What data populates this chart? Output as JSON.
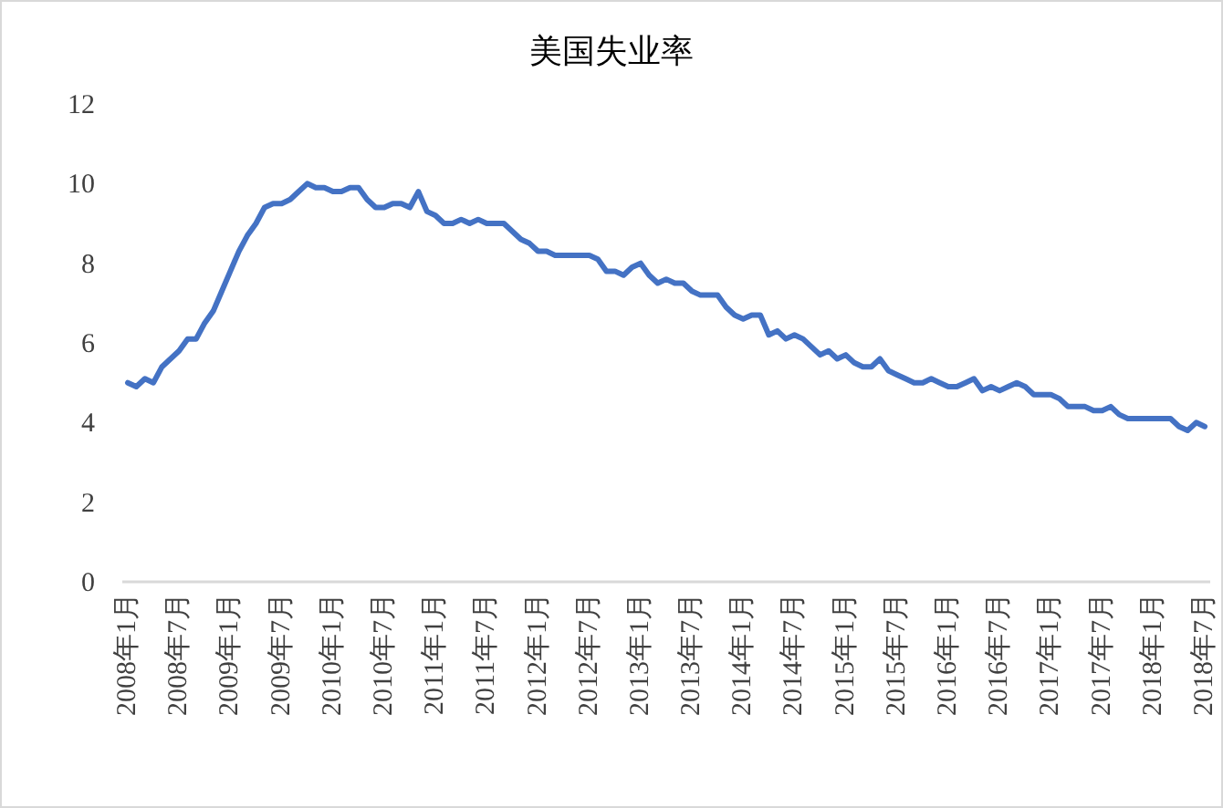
{
  "chart_data": {
    "type": "line",
    "title": "美国失业率",
    "categories": [
      "2008年1月",
      null,
      null,
      null,
      null,
      null,
      "2008年7月",
      null,
      null,
      null,
      null,
      null,
      "2009年1月",
      null,
      null,
      null,
      null,
      null,
      "2009年7月",
      null,
      null,
      null,
      null,
      null,
      "2010年1月",
      null,
      null,
      null,
      null,
      null,
      "2010年7月",
      null,
      null,
      null,
      null,
      null,
      "2011年1月",
      null,
      null,
      null,
      null,
      null,
      "2011年7月",
      null,
      null,
      null,
      null,
      null,
      "2012年1月",
      null,
      null,
      null,
      null,
      null,
      "2012年7月",
      null,
      null,
      null,
      null,
      null,
      "2013年1月",
      null,
      null,
      null,
      null,
      null,
      "2013年7月",
      null,
      null,
      null,
      null,
      null,
      "2014年1月",
      null,
      null,
      null,
      null,
      null,
      "2014年7月",
      null,
      null,
      null,
      null,
      null,
      "2015年1月",
      null,
      null,
      null,
      null,
      null,
      "2015年7月",
      null,
      null,
      null,
      null,
      null,
      "2016年1月",
      null,
      null,
      null,
      null,
      null,
      "2016年7月",
      null,
      null,
      null,
      null,
      null,
      "2017年1月",
      null,
      null,
      null,
      null,
      null,
      "2017年7月",
      null,
      null,
      null,
      null,
      null,
      "2018年1月",
      null,
      null,
      null,
      null,
      null,
      "2018年7月"
    ],
    "series": [
      {
        "color": "#4472c4",
        "values": [
          5.0,
          4.9,
          5.1,
          5.0,
          5.4,
          5.6,
          5.8,
          6.1,
          6.1,
          6.5,
          6.8,
          7.3,
          7.8,
          8.3,
          8.7,
          9.0,
          9.4,
          9.5,
          9.5,
          9.6,
          9.8,
          10.0,
          9.9,
          9.9,
          9.8,
          9.8,
          9.9,
          9.9,
          9.6,
          9.4,
          9.4,
          9.5,
          9.5,
          9.4,
          9.8,
          9.3,
          9.2,
          9.0,
          9.0,
          9.1,
          9.0,
          9.1,
          9.0,
          9.0,
          9.0,
          8.8,
          8.6,
          8.5,
          8.3,
          8.3,
          8.2,
          8.2,
          8.2,
          8.2,
          8.2,
          8.1,
          7.8,
          7.8,
          7.7,
          7.9,
          8.0,
          7.7,
          7.5,
          7.6,
          7.5,
          7.5,
          7.3,
          7.2,
          7.2,
          7.2,
          6.9,
          6.7,
          6.6,
          6.7,
          6.7,
          6.2,
          6.3,
          6.1,
          6.2,
          6.1,
          5.9,
          5.7,
          5.8,
          5.6,
          5.7,
          5.5,
          5.4,
          5.4,
          5.6,
          5.3,
          5.2,
          5.1,
          5.0,
          5.0,
          5.1,
          5.0,
          4.9,
          4.9,
          5.0,
          5.1,
          4.8,
          4.9,
          4.8,
          4.9,
          5.0,
          4.9,
          4.7,
          4.7,
          4.7,
          4.6,
          4.4,
          4.4,
          4.4,
          4.3,
          4.3,
          4.4,
          4.2,
          4.1,
          4.1,
          4.1,
          4.1,
          4.1,
          4.1,
          3.9,
          3.8,
          4.0,
          3.9
        ]
      }
    ],
    "ylim": [
      0,
      12
    ],
    "yticks": [
      0,
      2,
      4,
      6,
      8,
      10,
      12
    ],
    "grid": false,
    "marker": "none",
    "line_style": "solid"
  }
}
